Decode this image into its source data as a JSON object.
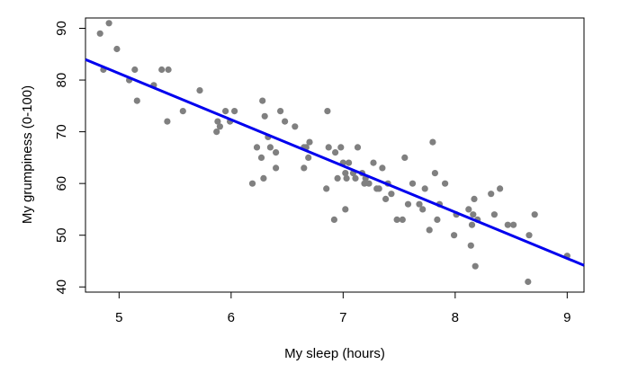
{
  "chart_data": {
    "type": "scatter",
    "title": "",
    "xlabel": "My sleep (hours)",
    "ylabel": "My grumpiness (0-100)",
    "xlim": [
      4.7,
      9.15
    ],
    "ylim": [
      39,
      92
    ],
    "x_ticks": [
      5,
      6,
      7,
      8,
      9
    ],
    "y_ticks": [
      40,
      50,
      60,
      70,
      80,
      90
    ],
    "x_tick_labels": [
      "5",
      "6",
      "7",
      "8",
      "9"
    ],
    "y_tick_labels": [
      "40",
      "50",
      "60",
      "70",
      "80",
      "90"
    ],
    "grid": false,
    "legend": "none",
    "point_color": "#808080",
    "line_color": "#0000ee",
    "points": [
      [
        4.83,
        89
      ],
      [
        4.86,
        82
      ],
      [
        4.91,
        91
      ],
      [
        4.98,
        86
      ],
      [
        5.09,
        80
      ],
      [
        5.14,
        82
      ],
      [
        5.16,
        76
      ],
      [
        5.31,
        79
      ],
      [
        5.38,
        82
      ],
      [
        5.43,
        72
      ],
      [
        5.44,
        82
      ],
      [
        5.57,
        74
      ],
      [
        5.72,
        78
      ],
      [
        5.87,
        70
      ],
      [
        5.88,
        72
      ],
      [
        5.9,
        71
      ],
      [
        5.95,
        74
      ],
      [
        5.99,
        72
      ],
      [
        6.03,
        74
      ],
      [
        6.19,
        60
      ],
      [
        6.23,
        67
      ],
      [
        6.27,
        65
      ],
      [
        6.28,
        76
      ],
      [
        6.29,
        61
      ],
      [
        6.3,
        73
      ],
      [
        6.33,
        69
      ],
      [
        6.35,
        67
      ],
      [
        6.4,
        66
      ],
      [
        6.4,
        63
      ],
      [
        6.44,
        74
      ],
      [
        6.48,
        72
      ],
      [
        6.57,
        71
      ],
      [
        6.65,
        63
      ],
      [
        6.65,
        67
      ],
      [
        6.67,
        67
      ],
      [
        6.69,
        65
      ],
      [
        6.7,
        68
      ],
      [
        6.85,
        59
      ],
      [
        6.86,
        74
      ],
      [
        6.87,
        67
      ],
      [
        6.92,
        53
      ],
      [
        6.93,
        66
      ],
      [
        6.95,
        61
      ],
      [
        6.98,
        67
      ],
      [
        7.0,
        64
      ],
      [
        7.02,
        55
      ],
      [
        7.02,
        62
      ],
      [
        7.03,
        61
      ],
      [
        7.05,
        64
      ],
      [
        7.09,
        62
      ],
      [
        7.11,
        61
      ],
      [
        7.13,
        67
      ],
      [
        7.17,
        62
      ],
      [
        7.19,
        60
      ],
      [
        7.2,
        61
      ],
      [
        7.23,
        60
      ],
      [
        7.27,
        64
      ],
      [
        7.3,
        59
      ],
      [
        7.32,
        59
      ],
      [
        7.35,
        63
      ],
      [
        7.38,
        57
      ],
      [
        7.4,
        60
      ],
      [
        7.43,
        58
      ],
      [
        7.48,
        53
      ],
      [
        7.53,
        53
      ],
      [
        7.55,
        65
      ],
      [
        7.58,
        56
      ],
      [
        7.62,
        60
      ],
      [
        7.68,
        56
      ],
      [
        7.71,
        55
      ],
      [
        7.73,
        59
      ],
      [
        7.77,
        51
      ],
      [
        7.8,
        68
      ],
      [
        7.82,
        62
      ],
      [
        7.84,
        53
      ],
      [
        7.86,
        56
      ],
      [
        7.91,
        60
      ],
      [
        7.99,
        50
      ],
      [
        8.01,
        54
      ],
      [
        8.12,
        55
      ],
      [
        8.14,
        48
      ],
      [
        8.15,
        52
      ],
      [
        8.16,
        54
      ],
      [
        8.17,
        57
      ],
      [
        8.18,
        44
      ],
      [
        8.2,
        53
      ],
      [
        8.32,
        58
      ],
      [
        8.35,
        54
      ],
      [
        8.4,
        59
      ],
      [
        8.47,
        52
      ],
      [
        8.52,
        52
      ],
      [
        8.65,
        41
      ],
      [
        8.66,
        50
      ],
      [
        8.71,
        54
      ],
      [
        9.0,
        46
      ]
    ],
    "regression_line": {
      "intercept": 125.956,
      "slope": -8.937
    }
  }
}
